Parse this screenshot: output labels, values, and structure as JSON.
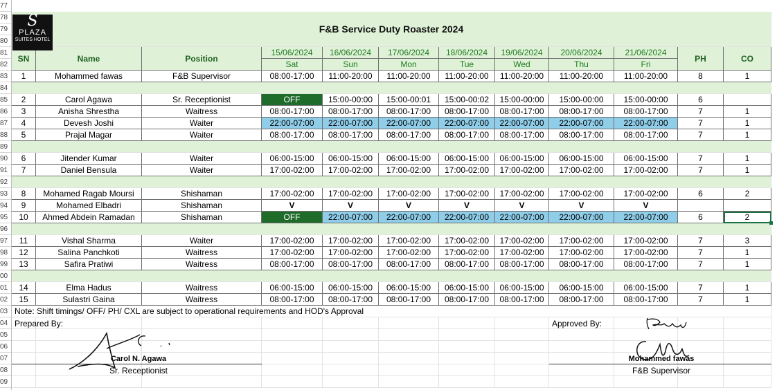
{
  "sheet": {
    "title": "F&B Service Duty Roaster 2024",
    "logo": {
      "mark": "S",
      "name": "PLAZA",
      "sub": "SUITES HOTEL"
    },
    "row_numbers": [
      "77",
      "78",
      "79",
      "80",
      "81",
      "82",
      "83",
      "84",
      "85",
      "86",
      "87",
      "88",
      "89",
      "90",
      "91",
      "92",
      "93",
      "94",
      "95",
      "96",
      "97",
      "98",
      "99",
      "00",
      "01",
      "02",
      "03",
      "04",
      "05",
      "06",
      "07",
      "08",
      "09"
    ],
    "headers": {
      "sn": "SN",
      "name": "Name",
      "position": "Position",
      "ph": "PH",
      "co": "CO",
      "dates": [
        "15/06/2024",
        "16/06/2024",
        "17/06/2024",
        "18/06/2024",
        "19/06/2024",
        "20/06/2024",
        "21/06/2024"
      ],
      "days": [
        "Sat",
        "Sun",
        "Mon",
        "Tue",
        "Wed",
        "Thu",
        "Fri"
      ]
    },
    "rows": [
      {
        "type": "staff",
        "sn": "1",
        "name": "Mohammed fawas",
        "position": "F&B Supervisor",
        "shifts": [
          "08:00-17:00",
          "11:00-20:00",
          "11:00-20:00",
          "11:00-20:00",
          "11:00-20:00",
          "11:00-20:00",
          "11:00-20:00"
        ],
        "ph": "8",
        "co": "1"
      },
      {
        "type": "gap"
      },
      {
        "type": "staff",
        "sn": "2",
        "name": "Carol Agawa",
        "position": "Sr. Receptionist",
        "shifts": [
          "OFF",
          "15:00-00:00",
          "15:00-00:01",
          "15:00-00:02",
          "15:00-00:00",
          "15:00-00:00",
          "15:00-00:00"
        ],
        "ph": "6",
        "co": ""
      },
      {
        "type": "staff",
        "sn": "3",
        "name": "Anisha Shrestha",
        "position": "Waitress",
        "shifts": [
          "08:00-17:00",
          "08:00-17:00",
          "08:00-17:00",
          "08:00-17:00",
          "08:00-17:00",
          "08:00-17:00",
          "08:00-17:00"
        ],
        "ph": "7",
        "co": "1"
      },
      {
        "type": "staff",
        "sn": "4",
        "name": "Devesh Joshi",
        "position": "Waiter",
        "shifts": [
          "22:00-07:00",
          "22:00-07:00",
          "22:00-07:00",
          "22:00-07:00",
          "22:00-07:00",
          "22:00-07:00",
          "22:00-07:00"
        ],
        "ph": "7",
        "co": "1"
      },
      {
        "type": "staff",
        "sn": "5",
        "name": "Prajal Magar",
        "position": "Waiter",
        "shifts": [
          "08:00-17:00",
          "08:00-17:00",
          "08:00-17:00",
          "08:00-17:00",
          "08:00-17:00",
          "08:00-17:00",
          "08:00-17:00"
        ],
        "ph": "7",
        "co": "1"
      },
      {
        "type": "gap"
      },
      {
        "type": "staff",
        "sn": "6",
        "name": "Jitender Kumar",
        "position": "Waiter",
        "shifts": [
          "06:00-15:00",
          "06:00-15:00",
          "06:00-15:00",
          "06:00-15:00",
          "06:00-15:00",
          "06:00-15:00",
          "06:00-15:00"
        ],
        "ph": "7",
        "co": "1"
      },
      {
        "type": "staff",
        "sn": "7",
        "name": "Daniel Bensula",
        "position": "Waiter",
        "shifts": [
          "17:00-02:00",
          "17:00-02:00",
          "17:00-02:00",
          "17:00-02:00",
          "17:00-02:00",
          "17:00-02:00",
          "17:00-02:00"
        ],
        "ph": "7",
        "co": "1"
      },
      {
        "type": "gap"
      },
      {
        "type": "staff",
        "sn": "8",
        "name": "Mohamed Ragab Moursi",
        "position": "Shishaman",
        "shifts": [
          "17:00-02:00",
          "17:00-02:00",
          "17:00-02:00",
          "17:00-02:00",
          "17:00-02:00",
          "17:00-02:00",
          "17:00-02:00"
        ],
        "ph": "6",
        "co": "2"
      },
      {
        "type": "staff",
        "sn": "9",
        "name": "Mohamed Elbadri",
        "position": "Shishaman",
        "shifts": [
          "V",
          "V",
          "V",
          "V",
          "V",
          "V",
          "V"
        ],
        "ph": "",
        "co": ""
      },
      {
        "type": "staff",
        "sn": "10",
        "name": "Ahmed Abdein Ramadan",
        "position": "Shishaman",
        "shifts": [
          "OFF",
          "22:00-07:00",
          "22:00-07:00",
          "22:00-07:00",
          "22:00-07:00",
          "22:00-07:00",
          "22:00-07:00"
        ],
        "ph": "6",
        "co": "2"
      },
      {
        "type": "gap"
      },
      {
        "type": "staff",
        "sn": "11",
        "name": "Vishal Sharma",
        "position": "Waiter",
        "shifts": [
          "17:00-02:00",
          "17:00-02:00",
          "17:00-02:00",
          "17:00-02:00",
          "17:00-02:00",
          "17:00-02:00",
          "17:00-02:00"
        ],
        "ph": "7",
        "co": "3"
      },
      {
        "type": "staff",
        "sn": "12",
        "name": "Salina Panchkoti",
        "position": "Waitress",
        "shifts": [
          "17:00-02:00",
          "17:00-02:00",
          "17:00-02:00",
          "17:00-02:00",
          "17:00-02:00",
          "17:00-02:00",
          "17:00-02:00"
        ],
        "ph": "7",
        "co": "1"
      },
      {
        "type": "staff",
        "sn": "13",
        "name": "Safira Pratiwi",
        "position": "Waitress",
        "shifts": [
          "08:00-17:00",
          "08:00-17:00",
          "08:00-17:00",
          "08:00-17:00",
          "08:00-17:00",
          "08:00-17:00",
          "08:00-17:00"
        ],
        "ph": "7",
        "co": "1"
      },
      {
        "type": "gap"
      },
      {
        "type": "staff",
        "sn": "14",
        "name": "Elma Hadus",
        "position": "Waitress",
        "shifts": [
          "06:00-15:00",
          "06:00-15:00",
          "06:00-15:00",
          "06:00-15:00",
          "06:00-15:00",
          "06:00-15:00",
          "06:00-15:00"
        ],
        "ph": "7",
        "co": "1"
      },
      {
        "type": "staff",
        "sn": "15",
        "name": "Sulastri Gaina",
        "position": "Waitress",
        "shifts": [
          "08:00-17:00",
          "08:00-17:00",
          "08:00-17:00",
          "08:00-17:00",
          "08:00-17:00",
          "08:00-17:00",
          "08:00-17:00"
        ],
        "ph": "7",
        "co": "1"
      }
    ],
    "note": "Note: Shift timings/ OFF/ PH/ CXL are subject to operational requirements and HOD's Approval",
    "prepared": {
      "label": "Prepared By:",
      "name": "Carol N. Agawa",
      "title": "Sr. Receptionist"
    },
    "approved": {
      "label": "Approved By:",
      "name": "Mohammed fawas",
      "title": "F&B Supervisor"
    },
    "selected_cell": "CO-10",
    "colors": {
      "header_green": "#dff2d8",
      "off_green": "#1e6b2a",
      "night_blue": "#8fcde8",
      "select_green": "#1e7145"
    }
  }
}
